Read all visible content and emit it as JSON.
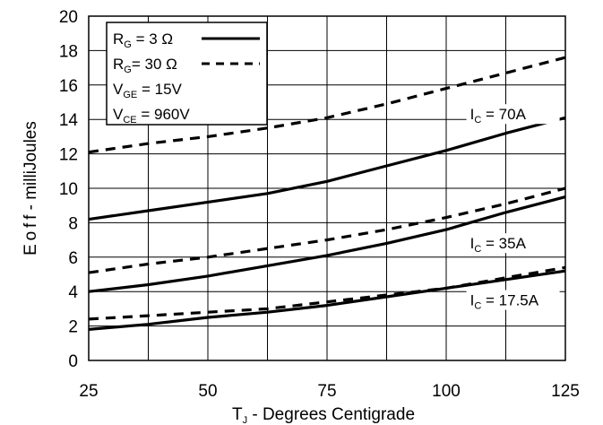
{
  "chart_data": {
    "type": "line",
    "xlabel": {
      "main": "T",
      "sub": "J",
      "rest": " - Degrees Centigrade"
    },
    "ylabel": "E o f f  - milliJoules",
    "xlim": [
      25,
      125
    ],
    "ylim": [
      0,
      20
    ],
    "xticks": [
      "25",
      "50",
      "75",
      "100",
      "125"
    ],
    "yticks": [
      "0",
      "2",
      "4",
      "6",
      "8",
      "10",
      "12",
      "14",
      "16",
      "18",
      "20"
    ],
    "grid": true,
    "legend_position": "top-left",
    "legend": [
      {
        "main": "R",
        "sub": "G",
        "rest": " = 3 Ω",
        "style": "solid"
      },
      {
        "main": "R",
        "sub": "G",
        "rest": "= 30 Ω",
        "style": "dashed"
      },
      {
        "main": "V",
        "sub": "GE",
        "rest": " = 15V",
        "style": "none"
      },
      {
        "main": "V",
        "sub": "CE",
        "rest": " = 960V",
        "style": "none"
      }
    ],
    "annotations": [
      {
        "main": "I",
        "sub": "C",
        "rest": " = 70A",
        "x": 105,
        "y": 14.0
      },
      {
        "main": "I",
        "sub": "C",
        "rest": " = 35A",
        "x": 105,
        "y": 6.5
      },
      {
        "main": "I",
        "sub": "C",
        "rest": " = 17.5A",
        "x": 105,
        "y": 3.2
      }
    ],
    "series": [
      {
        "style": "dashed",
        "x": [
          25,
          37.5,
          50,
          62.5,
          75,
          87.5,
          100,
          112.5,
          125
        ],
        "y": [
          12.1,
          12.6,
          13.0,
          13.5,
          14.1,
          14.9,
          15.8,
          16.7,
          17.6
        ]
      },
      {
        "style": "solid",
        "x": [
          25,
          37.5,
          50,
          62.5,
          75,
          87.5,
          100,
          112.5,
          125
        ],
        "y": [
          8.2,
          8.7,
          9.2,
          9.7,
          10.4,
          11.3,
          12.2,
          13.2,
          14.1
        ]
      },
      {
        "style": "dashed",
        "x": [
          25,
          37.5,
          50,
          62.5,
          75,
          87.5,
          100,
          112.5,
          125
        ],
        "y": [
          5.1,
          5.6,
          6.0,
          6.5,
          7.0,
          7.6,
          8.3,
          9.1,
          10.0
        ]
      },
      {
        "style": "solid",
        "x": [
          25,
          37.5,
          50,
          62.5,
          75,
          87.5,
          100,
          112.5,
          125
        ],
        "y": [
          4.0,
          4.4,
          4.9,
          5.5,
          6.1,
          6.8,
          7.6,
          8.6,
          9.5
        ]
      },
      {
        "style": "dashed",
        "x": [
          25,
          37.5,
          50,
          62.5,
          75,
          87.5,
          100,
          112.5,
          125
        ],
        "y": [
          2.4,
          2.6,
          2.8,
          3.0,
          3.4,
          3.8,
          4.2,
          4.8,
          5.4
        ]
      },
      {
        "style": "solid",
        "x": [
          25,
          37.5,
          50,
          62.5,
          75,
          87.5,
          100,
          112.5,
          125
        ],
        "y": [
          1.8,
          2.1,
          2.5,
          2.8,
          3.2,
          3.7,
          4.2,
          4.7,
          5.2
        ]
      }
    ],
    "colors": {
      "line": "#000000",
      "grid": "#000000",
      "background": "#ffffff"
    }
  }
}
